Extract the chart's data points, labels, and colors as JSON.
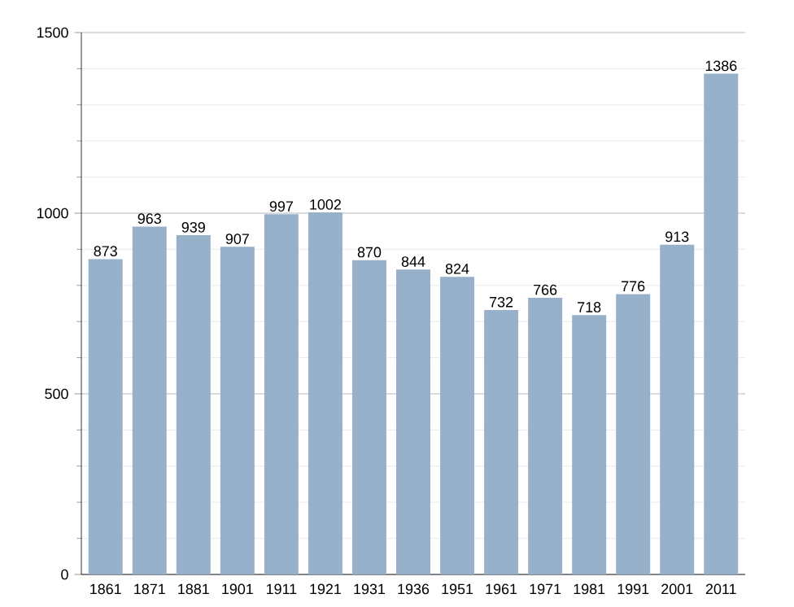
{
  "chart_data": {
    "type": "bar",
    "categories": [
      "1861",
      "1871",
      "1881",
      "1901",
      "1911",
      "1921",
      "1931",
      "1936",
      "1951",
      "1961",
      "1971",
      "1981",
      "1991",
      "2001",
      "2011"
    ],
    "values": [
      873,
      963,
      939,
      907,
      997,
      1002,
      870,
      844,
      824,
      732,
      766,
      718,
      776,
      913,
      1386
    ],
    "color": "#98b1cb",
    "ylim": [
      0,
      1500
    ],
    "yticks": [
      0,
      500,
      1000,
      1500
    ],
    "grid": "y",
    "data_labels": true
  }
}
